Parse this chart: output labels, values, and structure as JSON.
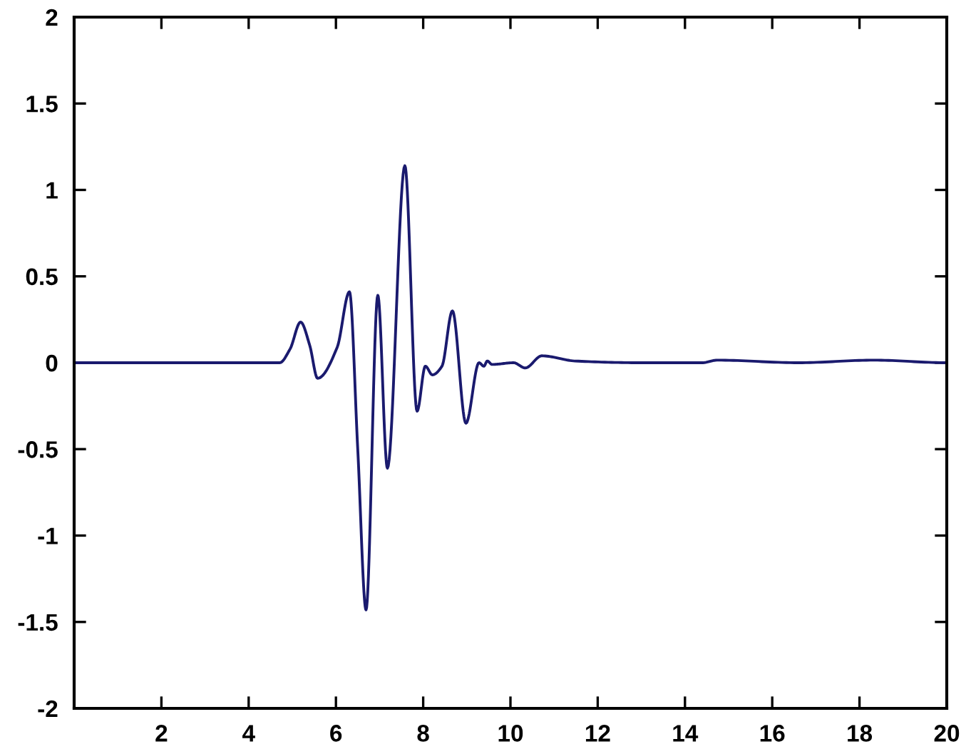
{
  "chart_data": {
    "type": "line",
    "x": [
      0,
      4.71,
      4.95,
      5.19,
      5.4,
      5.58,
      6.03,
      6.31,
      6.5,
      6.69,
      6.96,
      7.18,
      7.58,
      7.86,
      8.05,
      8.21,
      8.43,
      8.67,
      8.98,
      9.28,
      9.39,
      9.47,
      9.58,
      10.07,
      10.34,
      10.72,
      11.48,
      13.0,
      14.4,
      14.74,
      16.6,
      18.33,
      20
    ],
    "series": [
      {
        "color": "#1a1a6e",
        "values": [
          0,
          0,
          0.08,
          0.235,
          0.1,
          -0.09,
          0.09,
          0.41,
          -0.5,
          -1.43,
          0.39,
          -0.61,
          1.14,
          -0.28,
          -0.02,
          -0.07,
          -0.02,
          0.3,
          -0.35,
          0,
          -0.02,
          0.01,
          -0.01,
          0,
          -0.03,
          0.04,
          0.01,
          0,
          0,
          0.015,
          0,
          0.015,
          0
        ]
      }
    ],
    "xlim": [
      0,
      20
    ],
    "xticks": [
      2,
      4,
      6,
      8,
      10,
      12,
      14,
      16,
      18,
      20
    ],
    "ylim": [
      -2,
      2
    ],
    "yticks": [
      -2,
      -1.5,
      -1,
      -0.5,
      0,
      0.5,
      1,
      1.5,
      2
    ],
    "grid": false,
    "legend": false,
    "marker": "none",
    "line_style": "solid"
  }
}
